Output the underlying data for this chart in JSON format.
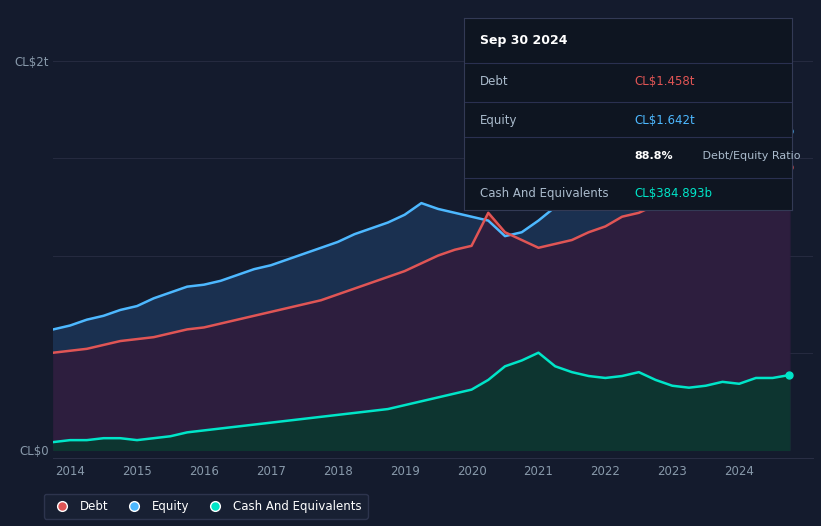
{
  "bg_color": "#141b2d",
  "title_date": "Sep 30 2024",
  "debt_label": "Debt",
  "debt_value": "CL$1.458t",
  "equity_label": "Equity",
  "equity_value": "CL$1.642t",
  "ratio_label": "88.8%",
  "ratio_suffix": " Debt/Equity Ratio",
  "cash_label": "Cash And Equivalents",
  "cash_value": "CL$384.893b",
  "debt_color": "#e05555",
  "equity_color": "#4db8ff",
  "cash_color": "#00e5c8",
  "fill_eq_gt_debt": "#1a3050",
  "fill_debt_area": "#2d1e3e",
  "fill_debt_gt_eq": "#6b1a1a",
  "fill_cash": "#0d3530",
  "grid_color": "#2a2f45",
  "legend_labels": [
    "Debt",
    "Equity",
    "Cash And Equivalents"
  ],
  "legend_colors": [
    "#e05555",
    "#4db8ff",
    "#00e5c8"
  ],
  "t": [
    2013.75,
    2014.0,
    2014.25,
    2014.5,
    2014.75,
    2015.0,
    2015.25,
    2015.5,
    2015.75,
    2016.0,
    2016.25,
    2016.5,
    2016.75,
    2017.0,
    2017.25,
    2017.5,
    2017.75,
    2018.0,
    2018.25,
    2018.5,
    2018.75,
    2019.0,
    2019.25,
    2019.5,
    2019.75,
    2020.0,
    2020.25,
    2020.5,
    2020.75,
    2021.0,
    2021.25,
    2021.5,
    2021.75,
    2022.0,
    2022.25,
    2022.5,
    2022.75,
    2023.0,
    2023.25,
    2023.5,
    2023.75,
    2024.0,
    2024.25,
    2024.5,
    2024.75
  ],
  "debt": [
    0.5,
    0.51,
    0.52,
    0.54,
    0.56,
    0.57,
    0.58,
    0.6,
    0.62,
    0.63,
    0.65,
    0.67,
    0.69,
    0.71,
    0.73,
    0.75,
    0.77,
    0.8,
    0.83,
    0.86,
    0.89,
    0.92,
    0.96,
    1.0,
    1.03,
    1.05,
    1.22,
    1.12,
    1.08,
    1.04,
    1.06,
    1.08,
    1.12,
    1.15,
    1.2,
    1.22,
    1.26,
    1.28,
    1.3,
    1.33,
    1.36,
    1.38,
    1.4,
    1.43,
    1.458
  ],
  "equity": [
    0.62,
    0.64,
    0.67,
    0.69,
    0.72,
    0.74,
    0.78,
    0.81,
    0.84,
    0.85,
    0.87,
    0.9,
    0.93,
    0.95,
    0.98,
    1.01,
    1.04,
    1.07,
    1.11,
    1.14,
    1.17,
    1.21,
    1.27,
    1.24,
    1.22,
    1.2,
    1.18,
    1.1,
    1.12,
    1.18,
    1.25,
    1.33,
    1.4,
    1.46,
    1.53,
    1.52,
    1.55,
    1.58,
    1.58,
    1.56,
    1.55,
    1.57,
    1.95,
    2.05,
    1.642
  ],
  "cash": [
    0.04,
    0.05,
    0.05,
    0.06,
    0.06,
    0.05,
    0.06,
    0.07,
    0.09,
    0.1,
    0.11,
    0.12,
    0.13,
    0.14,
    0.15,
    0.16,
    0.17,
    0.18,
    0.19,
    0.2,
    0.21,
    0.23,
    0.25,
    0.27,
    0.29,
    0.31,
    0.36,
    0.43,
    0.46,
    0.5,
    0.43,
    0.4,
    0.38,
    0.37,
    0.38,
    0.4,
    0.36,
    0.33,
    0.32,
    0.33,
    0.35,
    0.34,
    0.37,
    0.37,
    0.385
  ]
}
